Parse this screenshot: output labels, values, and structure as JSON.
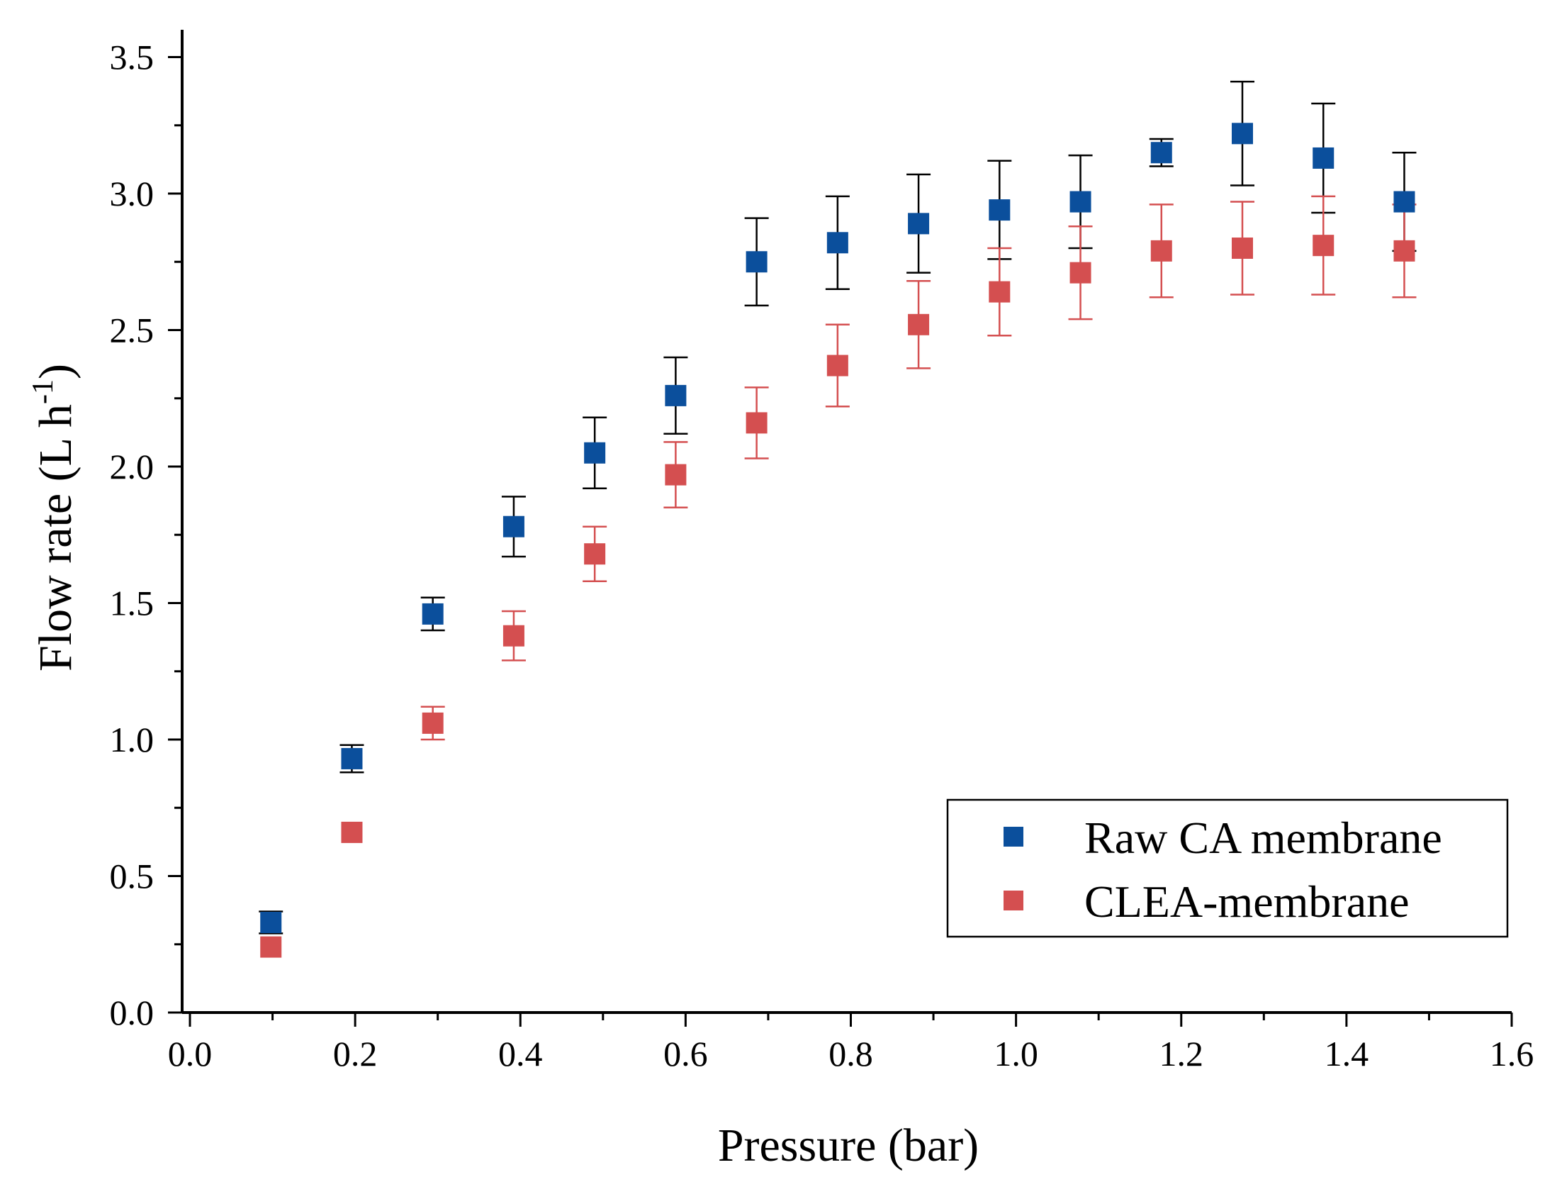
{
  "chart_data": {
    "type": "scatter",
    "title": "",
    "xlabel": "Pressure (bar)",
    "ylabel_main": "Flow rate (L h",
    "ylabel_sup": "-1",
    "ylabel_end": ")",
    "xlim": [
      0.0,
      1.6
    ],
    "ylim": [
      0.0,
      3.6
    ],
    "x_ticks": [
      "0.0",
      "0.2",
      "0.4",
      "0.6",
      "0.8",
      "1.0",
      "1.2",
      "1.4",
      "1.6"
    ],
    "y_ticks": [
      "0.0",
      "0.5",
      "1.0",
      "1.5",
      "2.0",
      "2.5",
      "3.0",
      "3.5"
    ],
    "grid": false,
    "legend_position": "bottom-right",
    "series": [
      {
        "name": "Raw CA membrane",
        "marker_color": "#0b4f9c",
        "errorbar_color": "#000000",
        "x": [
          0.098,
          0.196,
          0.294,
          0.392,
          0.49,
          0.588,
          0.686,
          0.784,
          0.882,
          0.98,
          1.078,
          1.176,
          1.274,
          1.372,
          1.47
        ],
        "y": [
          0.33,
          0.93,
          1.46,
          1.78,
          2.05,
          2.26,
          2.75,
          2.82,
          2.89,
          2.94,
          2.97,
          3.15,
          3.22,
          3.13,
          2.97
        ],
        "err": [
          0.04,
          0.05,
          0.06,
          0.11,
          0.13,
          0.14,
          0.16,
          0.17,
          0.18,
          0.18,
          0.17,
          0.05,
          0.19,
          0.2,
          0.18
        ]
      },
      {
        "name": "CLEA-membrane",
        "marker_color": "#d44f50",
        "errorbar_color": "#d44f50",
        "x": [
          0.098,
          0.196,
          0.294,
          0.392,
          0.49,
          0.588,
          0.686,
          0.784,
          0.882,
          0.98,
          1.078,
          1.176,
          1.274,
          1.372,
          1.47
        ],
        "y": [
          0.24,
          0.66,
          1.06,
          1.38,
          1.68,
          1.97,
          2.16,
          2.37,
          2.52,
          2.64,
          2.71,
          2.79,
          2.8,
          2.81,
          2.79
        ],
        "err": [
          0.0,
          0.0,
          0.06,
          0.09,
          0.1,
          0.12,
          0.13,
          0.15,
          0.16,
          0.16,
          0.17,
          0.17,
          0.17,
          0.18,
          0.17
        ]
      }
    ]
  }
}
